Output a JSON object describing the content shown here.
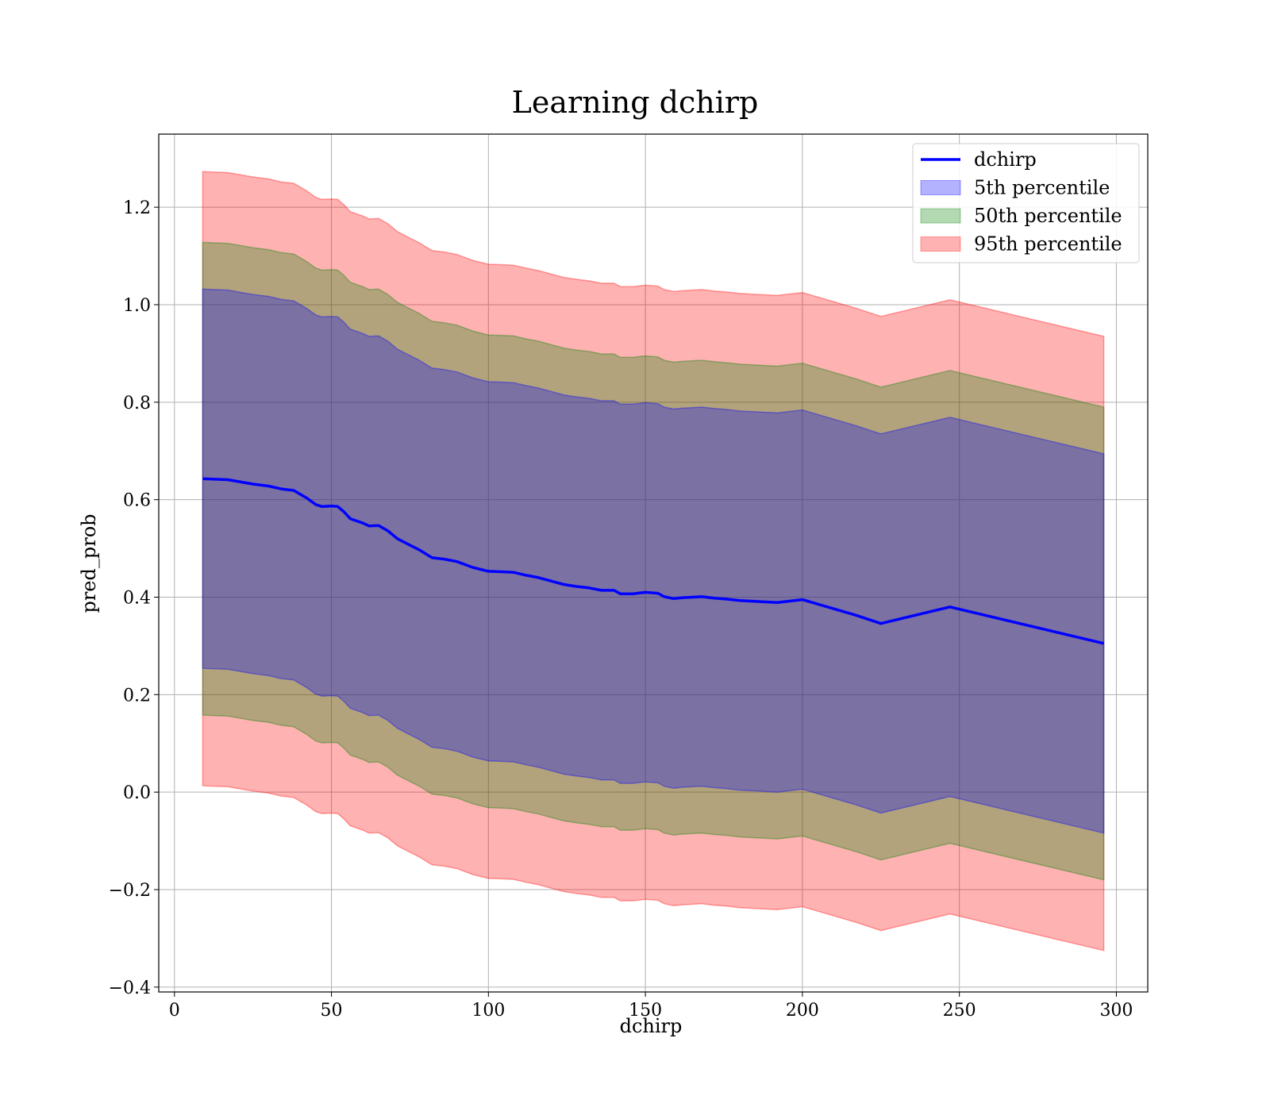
{
  "chart_data": {
    "type": "line",
    "title": "Learning dchirp",
    "xlabel": "dchirp",
    "ylabel": "pred_prob",
    "xlim": [
      -5,
      310
    ],
    "ylim": [
      -0.41,
      1.35
    ],
    "xticks": [
      0,
      50,
      100,
      150,
      200,
      250,
      300
    ],
    "xtick_labels": [
      "0",
      "50",
      "100",
      "150",
      "200",
      "250",
      "300"
    ],
    "yticks": [
      -0.4,
      -0.2,
      0.0,
      0.2,
      0.4,
      0.6,
      0.8,
      1.0,
      1.2
    ],
    "ytick_labels": [
      "−0.4",
      "−0.2",
      "0.0",
      "0.2",
      "0.4",
      "0.6",
      "0.8",
      "1.0",
      "1.2"
    ],
    "grid": true,
    "legend_position": "top-right",
    "x": [
      9,
      17,
      25,
      30,
      34,
      38,
      42,
      45,
      47,
      50,
      52,
      54,
      56,
      60,
      62,
      65,
      68,
      71,
      74,
      78,
      82,
      86,
      90,
      95,
      100,
      105,
      108,
      112,
      116,
      120,
      124,
      128,
      132,
      136,
      140,
      142,
      146,
      150,
      154,
      156,
      159,
      162,
      168,
      172,
      176,
      180,
      186,
      192,
      200,
      217,
      225,
      247,
      296
    ],
    "series": [
      {
        "name": "dchirp",
        "color": "#0000ff",
        "values": [
          0.643,
          0.641,
          0.632,
          0.628,
          0.622,
          0.619,
          0.604,
          0.59,
          0.586,
          0.587,
          0.586,
          0.575,
          0.561,
          0.552,
          0.546,
          0.547,
          0.536,
          0.52,
          0.51,
          0.497,
          0.481,
          0.478,
          0.473,
          0.461,
          0.453,
          0.452,
          0.451,
          0.445,
          0.44,
          0.433,
          0.426,
          0.422,
          0.419,
          0.414,
          0.414,
          0.407,
          0.407,
          0.41,
          0.408,
          0.401,
          0.397,
          0.399,
          0.401,
          0.398,
          0.396,
          0.393,
          0.391,
          0.389,
          0.395,
          0.363,
          0.346,
          0.38,
          0.305
        ]
      }
    ],
    "bands": [
      {
        "name": "5th percentile",
        "color": "#0000ff",
        "offset": 0.389
      },
      {
        "name": "50th percentile",
        "color": "#008000",
        "offset": 0.485
      },
      {
        "name": "95th percentile",
        "color": "#ff0000",
        "offset": 0.63
      }
    ]
  }
}
